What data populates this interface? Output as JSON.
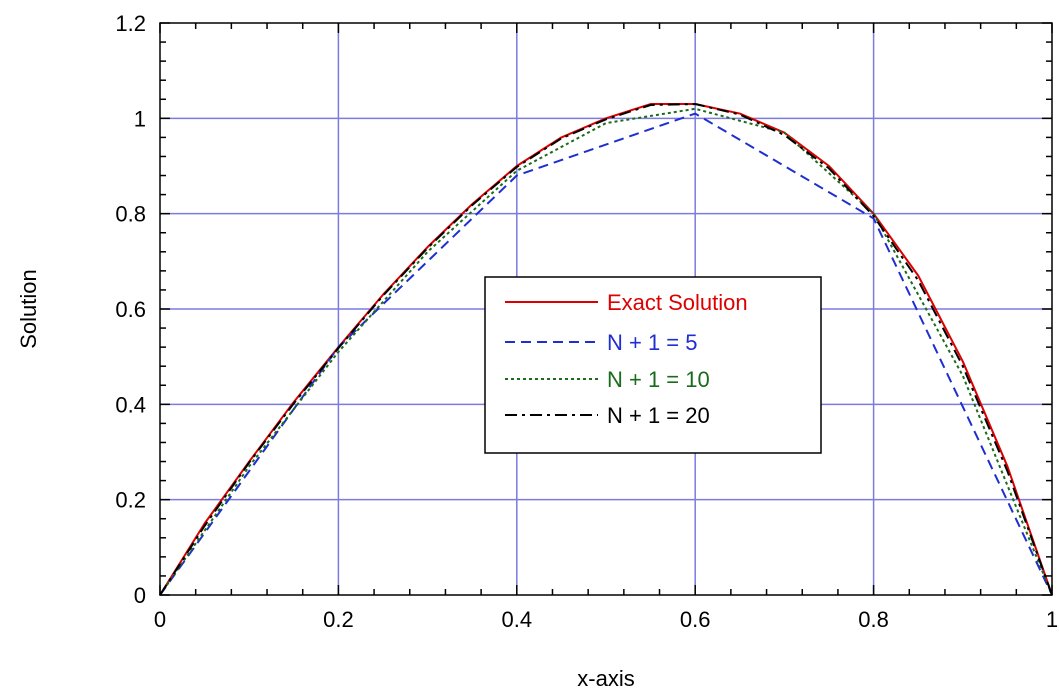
{
  "chart_data": {
    "type": "line",
    "title": "",
    "xlabel": "x-axis",
    "ylabel": "Solution",
    "xlim": [
      0,
      1
    ],
    "ylim": [
      0,
      1.2
    ],
    "x_ticks": [
      0,
      0.2,
      0.4,
      0.6,
      0.8,
      1
    ],
    "x_tick_labels": [
      "0",
      "0.2",
      "0.4",
      "0.6",
      "0.8",
      "1"
    ],
    "y_ticks": [
      0,
      0.2,
      0.4,
      0.6,
      0.8,
      1,
      1.2
    ],
    "y_tick_labels": [
      "0",
      "0.2",
      "0.4",
      "0.6",
      "0.8",
      "1",
      "1.2"
    ],
    "grid": true,
    "legend_position": "center",
    "series": [
      {
        "name": "Exact Solution",
        "color": "#dd0000",
        "style": "solid",
        "x": [
          0,
          0.05,
          0.1,
          0.15,
          0.2,
          0.25,
          0.3,
          0.35,
          0.4,
          0.45,
          0.5,
          0.55,
          0.6,
          0.65,
          0.7,
          0.75,
          0.8,
          0.85,
          0.9,
          0.95,
          1
        ],
        "y": [
          0,
          0.15,
          0.28,
          0.405,
          0.52,
          0.63,
          0.73,
          0.82,
          0.9,
          0.96,
          1.0,
          1.03,
          1.03,
          1.01,
          0.97,
          0.9,
          0.8,
          0.67,
          0.49,
          0.27,
          0
        ]
      },
      {
        "name": "N + 1 = 5",
        "color": "#1f2fcf",
        "style": "dashed",
        "x": [
          0,
          0.2,
          0.4,
          0.6,
          0.8,
          1
        ],
        "y": [
          0,
          0.52,
          0.88,
          1.01,
          0.79,
          0
        ]
      },
      {
        "name": "N + 1 = 10",
        "color": "#1a6b1a",
        "style": "dotted",
        "x": [
          0,
          0.1,
          0.2,
          0.3,
          0.4,
          0.5,
          0.6,
          0.7,
          0.8,
          0.9,
          1
        ],
        "y": [
          0,
          0.27,
          0.51,
          0.72,
          0.89,
          0.99,
          1.02,
          0.97,
          0.8,
          0.46,
          0
        ]
      },
      {
        "name": "N + 1 = 20",
        "color": "#000000",
        "style": "dashdot",
        "x": [
          0,
          0.05,
          0.1,
          0.15,
          0.2,
          0.25,
          0.3,
          0.35,
          0.4,
          0.45,
          0.5,
          0.55,
          0.6,
          0.65,
          0.7,
          0.75,
          0.8,
          0.85,
          0.9,
          0.95,
          1
        ],
        "y": [
          0,
          0.145,
          0.278,
          0.402,
          0.518,
          0.628,
          0.728,
          0.818,
          0.898,
          0.958,
          0.998,
          1.028,
          1.03,
          1.008,
          0.965,
          0.895,
          0.795,
          0.66,
          0.48,
          0.26,
          0
        ]
      }
    ]
  }
}
